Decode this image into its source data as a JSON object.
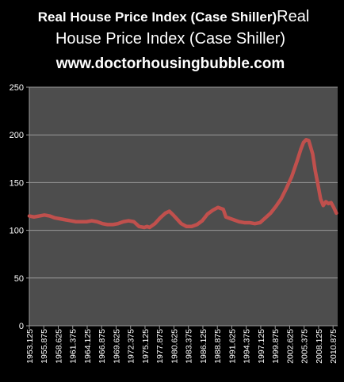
{
  "chart_data": {
    "type": "line",
    "title_bold": "Real House Price Index (Case Shiller)",
    "title_tail": "Real",
    "title_line2": "House Price Index (Case Shiller)",
    "title_line3": "www.doctorhousingbubble.com",
    "xlabel": "",
    "ylabel": "",
    "ylim": [
      0,
      250
    ],
    "yticks": [
      0,
      50,
      100,
      150,
      200,
      250
    ],
    "xlim": [
      1953.125,
      2011.75
    ],
    "xticks": [
      "1953.125",
      "1955.875",
      "1958.625",
      "1961.375",
      "1964.125",
      "1966.875",
      "1969.625",
      "1972.375",
      "1975.125",
      "1977.875",
      "1980.625",
      "1983.375",
      "1986.125",
      "1988.875",
      "1991.625",
      "1994.375",
      "1997.125",
      "1999.875",
      "2002.625",
      "2005.375",
      "2008.125",
      "2010.875"
    ],
    "grid": "horizontal",
    "colors": {
      "line": "#c0504d",
      "background": "#000000",
      "plot_area": "#4d4d4d",
      "grid": "#9a9a9a",
      "text": "#ffffff"
    },
    "series": [
      {
        "points": [
          [
            1953.125,
            115
          ],
          [
            1954.0,
            114
          ],
          [
            1955.0,
            115
          ],
          [
            1956.0,
            116
          ],
          [
            1957.0,
            115
          ],
          [
            1958.0,
            113
          ],
          [
            1959.0,
            112
          ],
          [
            1960.0,
            111
          ],
          [
            1961.0,
            110
          ],
          [
            1962.0,
            109
          ],
          [
            1963.0,
            109
          ],
          [
            1964.0,
            109
          ],
          [
            1965.0,
            110
          ],
          [
            1966.0,
            109
          ],
          [
            1967.0,
            107
          ],
          [
            1968.0,
            106
          ],
          [
            1969.0,
            106
          ],
          [
            1970.0,
            107
          ],
          [
            1971.0,
            109
          ],
          [
            1972.0,
            110
          ],
          [
            1973.0,
            109
          ],
          [
            1974.0,
            104
          ],
          [
            1975.0,
            103
          ],
          [
            1975.5,
            104
          ],
          [
            1976.0,
            103
          ],
          [
            1977.0,
            107
          ],
          [
            1978.0,
            113
          ],
          [
            1979.0,
            118
          ],
          [
            1979.75,
            120
          ],
          [
            1980.5,
            116
          ],
          [
            1981.0,
            113
          ],
          [
            1982.0,
            107
          ],
          [
            1983.0,
            104
          ],
          [
            1984.0,
            104
          ],
          [
            1985.0,
            106
          ],
          [
            1986.0,
            110
          ],
          [
            1987.0,
            117
          ],
          [
            1988.0,
            121
          ],
          [
            1989.0,
            124
          ],
          [
            1990.0,
            122
          ],
          [
            1990.5,
            114
          ],
          [
            1991.0,
            113
          ],
          [
            1992.0,
            111
          ],
          [
            1993.0,
            109
          ],
          [
            1994.0,
            108
          ],
          [
            1995.0,
            108
          ],
          [
            1996.0,
            107
          ],
          [
            1997.0,
            108
          ],
          [
            1998.0,
            113
          ],
          [
            1999.0,
            118
          ],
          [
            2000.0,
            125
          ],
          [
            2001.0,
            133
          ],
          [
            2002.0,
            144
          ],
          [
            2003.0,
            156
          ],
          [
            2004.0,
            172
          ],
          [
            2004.75,
            185
          ],
          [
            2005.25,
            192
          ],
          [
            2005.75,
            195
          ],
          [
            2006.25,
            194
          ],
          [
            2007.0,
            180
          ],
          [
            2007.5,
            162
          ],
          [
            2008.0,
            148
          ],
          [
            2008.5,
            133
          ],
          [
            2009.0,
            126
          ],
          [
            2009.5,
            130
          ],
          [
            2010.0,
            128
          ],
          [
            2010.5,
            129
          ],
          [
            2011.0,
            124
          ],
          [
            2011.5,
            118
          ]
        ]
      }
    ]
  }
}
